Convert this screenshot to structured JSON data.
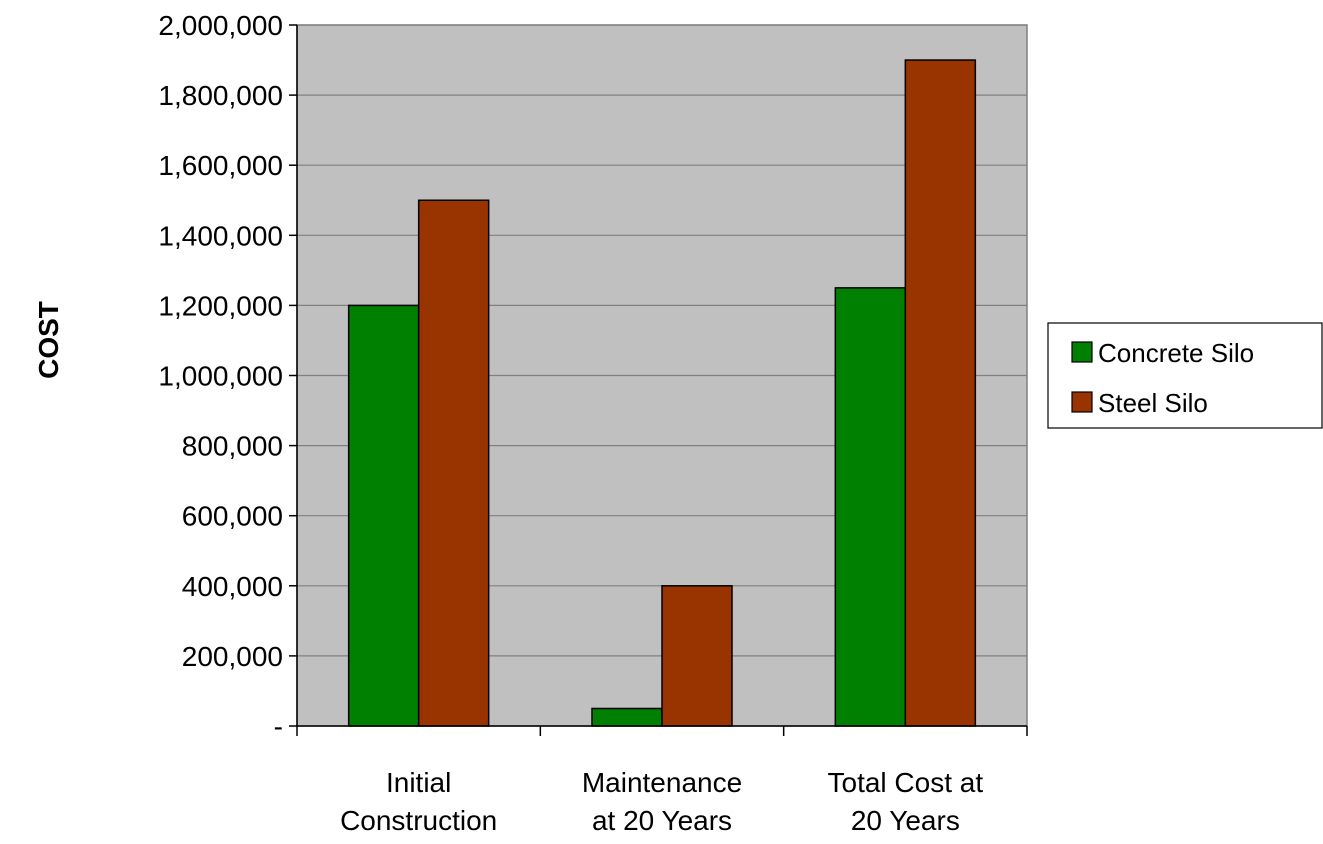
{
  "chart_data": {
    "type": "bar",
    "title": "",
    "xlabel": "",
    "ylabel": "COST",
    "ylim": [
      0,
      2000000
    ],
    "ytick_step": 200000,
    "yticks": [
      "-",
      "200,000",
      "400,000",
      "600,000",
      "800,000",
      "1,000,000",
      "1,200,000",
      "1,400,000",
      "1,600,000",
      "1,800,000",
      "2,000,000"
    ],
    "categories": [
      [
        "Initial",
        "Construction"
      ],
      [
        "Maintenance",
        "at 20 Years"
      ],
      [
        "Total Cost at",
        "20 Years"
      ]
    ],
    "series": [
      {
        "name": "Concrete Silo",
        "color": "#008000",
        "values": [
          1200000,
          50000,
          1250000
        ]
      },
      {
        "name": "Steel Silo",
        "color": "#993300",
        "values": [
          1500000,
          400000,
          1900000
        ]
      }
    ],
    "plot_background": "#c0c0c0",
    "gridlines": true,
    "legend_position": "right"
  }
}
